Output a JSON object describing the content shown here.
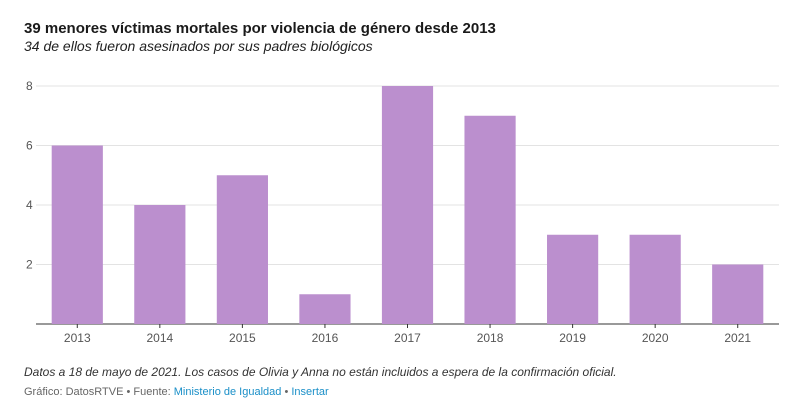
{
  "chart_data": {
    "type": "bar",
    "title": "39 menores víctimas mortales por violencia de género desde 2013",
    "subtitle": "34 de ellos fueron asesinados por sus padres biológicos",
    "categories": [
      "2013",
      "2014",
      "2015",
      "2016",
      "2017",
      "2018",
      "2019",
      "2020",
      "2021"
    ],
    "values": [
      6,
      4,
      5,
      1,
      8,
      7,
      3,
      3,
      2
    ],
    "yticks": [
      2,
      4,
      6,
      8
    ],
    "ylim": [
      0,
      8
    ],
    "grid": true,
    "bar_color": "#bb8fce",
    "xlabel": "",
    "ylabel": ""
  },
  "note": "Datos a 18 de mayo de 2021. Los casos de Olivia y Anna no están incluidos a espera de la confirmación oficial.",
  "footer": {
    "prefix": "Gráfico: DatosRTVE • Fuente: ",
    "source_link": "Ministerio de Igualdad",
    "separator": " • ",
    "embed_link": "Insertar",
    "link_color": "#1a8fc8"
  }
}
